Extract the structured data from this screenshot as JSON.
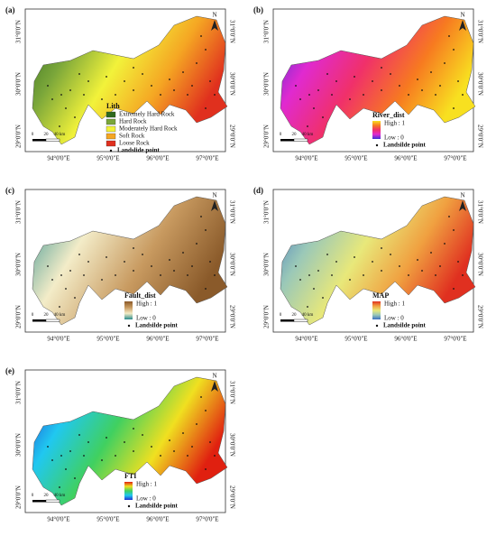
{
  "figure": {
    "lon_labels": [
      "94°0'0\"E",
      "95°0'0\"E",
      "96°0'0\"E",
      "97°0'0\"E"
    ],
    "lat_labels": [
      "31°0'0\"N",
      "30°0'0\"N",
      "29°0'0\"N"
    ],
    "north": "N",
    "scale_labels": [
      "0",
      "20",
      "40 km"
    ],
    "panels": [
      {
        "label": "(a)",
        "legend_title": "Lith",
        "point_label": "Landslide point",
        "classes": [
          {
            "name": "Extremely Hard Rock",
            "color": "#2f6a1e"
          },
          {
            "name": "Hard Rock",
            "color": "#7aa63a"
          },
          {
            "name": "Moderately Hard Rock",
            "color": "#f2f23a"
          },
          {
            "name": "Soft Rock",
            "color": "#f5a623"
          },
          {
            "name": "Loose Rock",
            "color": "#e0301e"
          }
        ]
      },
      {
        "label": "(b)",
        "legend_title": "River_dist",
        "high": "High : 1",
        "low": "Low : 0",
        "point_label": "Landsilde point",
        "ramp": [
          "#3b2fd6",
          "#e02ad0",
          "#f0306a",
          "#f77a20",
          "#f8e020"
        ]
      },
      {
        "label": "(c)",
        "legend_title": "Fault_dist",
        "high": "High : 1",
        "low": "Low : 0",
        "point_label": "Landsilde point",
        "ramp": [
          "#2a8c8c",
          "#f3ecc8",
          "#c89a60",
          "#8a5a2a"
        ]
      },
      {
        "label": "(d)",
        "legend_title": "MAP",
        "high": "High : 1",
        "low": "Low : 0",
        "point_label": "Landsilde point",
        "ramp": [
          "#3a6fc0",
          "#9ac8b8",
          "#e8e87a",
          "#f0a040",
          "#e03020"
        ]
      },
      {
        "label": "(e)",
        "legend_title": "FTI",
        "high": "High : 1",
        "low": "Low : 0",
        "point_label": "Landsilde point",
        "ramp": [
          "#1f30d0",
          "#20c8f0",
          "#40d060",
          "#f0e020",
          "#e02010"
        ]
      }
    ]
  }
}
